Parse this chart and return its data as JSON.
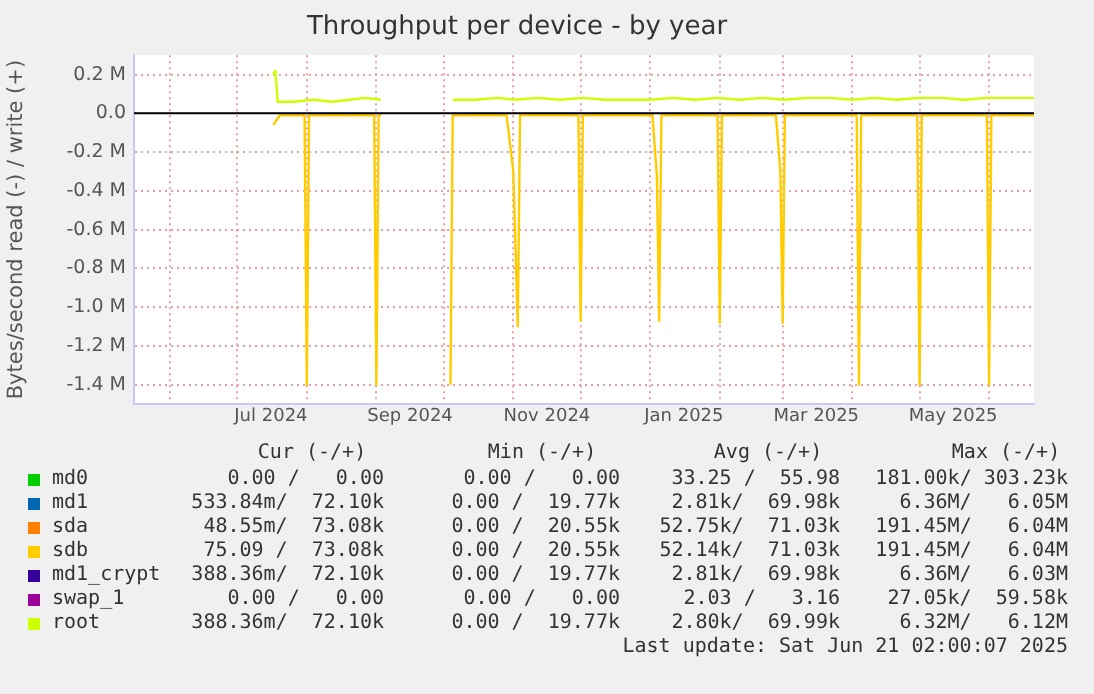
{
  "chart_data": {
    "type": "line",
    "title": "Throughput per device - by year",
    "ylabel": "Bytes/second read (-) / write (+)",
    "xlim": [
      "2024-05-16",
      "2025-06-21"
    ],
    "xticks": [
      {
        "value": "2024-06-01",
        "label": null
      },
      {
        "value": "2024-07-01",
        "label": null
      },
      {
        "value": "2024-07-16",
        "label": "Jul 2024"
      },
      {
        "value": "2024-08-01",
        "label": null
      },
      {
        "value": "2024-09-01",
        "label": null
      },
      {
        "value": "2024-09-16",
        "label": "Sep 2024"
      },
      {
        "value": "2024-10-01",
        "label": null
      },
      {
        "value": "2024-11-01",
        "label": null
      },
      {
        "value": "2024-11-16",
        "label": "Nov 2024"
      },
      {
        "value": "2024-12-01",
        "label": null
      },
      {
        "value": "2025-01-01",
        "label": null
      },
      {
        "value": "2025-01-16",
        "label": "Jan 2025"
      },
      {
        "value": "2025-02-01",
        "label": null
      },
      {
        "value": "2025-03-01",
        "label": null
      },
      {
        "value": "2025-03-16",
        "label": "Mar 2025"
      },
      {
        "value": "2025-04-01",
        "label": null
      },
      {
        "value": "2025-05-01",
        "label": null
      },
      {
        "value": "2025-05-16",
        "label": "May 2025"
      },
      {
        "value": "2025-06-01",
        "label": null
      }
    ],
    "ylim": [
      -1.5,
      0.3
    ],
    "yticks": [
      {
        "value": -1.4,
        "label": "-1.4 M"
      },
      {
        "value": -1.2,
        "label": "-1.2 M"
      },
      {
        "value": -1.0,
        "label": "-1.0 M"
      },
      {
        "value": -0.8,
        "label": "-0.8 M"
      },
      {
        "value": -0.6,
        "label": "-0.6 M"
      },
      {
        "value": -0.4,
        "label": "-0.4 M"
      },
      {
        "value": -0.2,
        "label": "-0.2 M"
      },
      {
        "value": 0,
        "label": "0.0"
      },
      {
        "value": 0.2,
        "label": "0.2 M"
      }
    ],
    "grid": true,
    "legend": "bottom",
    "marker": "none",
    "ref_lines": [
      {
        "axis": "y",
        "value": 0,
        "color": "#000000"
      }
    ],
    "series": [
      {
        "name": "md0",
        "color": "#00cc00"
      },
      {
        "name": "md1",
        "color": "#0066b3"
      },
      {
        "name": "sda",
        "color": "#ff8000"
      },
      {
        "name": "sdb",
        "color": "#ffcc00",
        "x": [
          "2024-07-17",
          "2024-07-20",
          "2024-07-31",
          "2024-08-01",
          "2024-08-02",
          "2024-08-31",
          "2024-09-01",
          "2024-09-02",
          "2024-09-03",
          "2024-09-04",
          "2024-10-03",
          "2024-10-04",
          "2024-10-05",
          "2024-10-29",
          "2024-11-01",
          "2024-11-03",
          "2024-11-04",
          "2024-11-30",
          "2024-12-01",
          "2024-12-02",
          "2025-01-02",
          "2025-01-04",
          "2025-01-05",
          "2025-01-06",
          "2025-01-31",
          "2025-02-01",
          "2025-02-02",
          "2025-02-26",
          "2025-02-28",
          "2025-03-01",
          "2025-03-02",
          "2025-04-03",
          "2025-04-04",
          "2025-04-05",
          "2025-04-30",
          "2025-05-01",
          "2025-05-02",
          "2025-05-31",
          "2025-06-01",
          "2025-06-02",
          "2025-06-21"
        ],
        "values": [
          -0.06,
          -0.01,
          -0.01,
          -1.4,
          -0.01,
          -0.01,
          -1.4,
          -0.01,
          -0.01,
          null,
          null,
          -1.4,
          -0.01,
          -0.01,
          -0.3,
          -1.1,
          -0.01,
          -0.01,
          -1.07,
          -0.01,
          -0.01,
          -0.33,
          -1.07,
          -0.01,
          -0.01,
          -1.08,
          -0.01,
          -0.01,
          -0.3,
          -1.08,
          -0.01,
          -0.01,
          -1.4,
          -0.01,
          -0.01,
          -1.4,
          -0.01,
          -0.01,
          -1.4,
          -0.01,
          -0.01
        ]
      },
      {
        "name": "md1_crypt",
        "color": "#330099"
      },
      {
        "name": "swap_1",
        "color": "#990099"
      },
      {
        "name": "root",
        "color": "#ccff00",
        "x": [
          "2024-07-17",
          "2024-07-18",
          "2024-07-19",
          "2024-07-26",
          "2024-08-04",
          "2024-08-12",
          "2024-08-20",
          "2024-08-27",
          "2024-09-03",
          "2024-09-04",
          "2024-10-04",
          "2024-10-05",
          "2024-10-15",
          "2024-10-25",
          "2024-11-02",
          "2024-11-12",
          "2024-11-22",
          "2024-12-02",
          "2024-12-12",
          "2024-12-22",
          "2025-01-01",
          "2025-01-11",
          "2025-01-21",
          "2025-01-31",
          "2025-02-10",
          "2025-02-20",
          "2025-03-02",
          "2025-03-12",
          "2025-03-22",
          "2025-04-01",
          "2025-04-11",
          "2025-04-21",
          "2025-05-01",
          "2025-05-11",
          "2025-05-21",
          "2025-05-31",
          "2025-06-10",
          "2025-06-21"
        ],
        "values": [
          0.2,
          0.22,
          0.06,
          0.06,
          0.07,
          0.06,
          0.07,
          0.08,
          0.07,
          null,
          null,
          0.07,
          0.07,
          0.08,
          0.07,
          0.08,
          0.07,
          0.08,
          0.07,
          0.07,
          0.07,
          0.08,
          0.07,
          0.08,
          0.07,
          0.08,
          0.07,
          0.08,
          0.08,
          0.07,
          0.08,
          0.07,
          0.08,
          0.08,
          0.07,
          0.08,
          0.08,
          0.08
        ]
      }
    ],
    "annotations": [
      "Cur (-/+)",
      "Min (-/+)",
      "Avg (-/+)",
      "Max (-/+)",
      "0.00 /   0.00",
      "0.00 /   0.00",
      "33.25 /  55.98",
      "181.00k/ 303.23k",
      "533.84m/  72.10k",
      "0.00 /  19.77k",
      "2.81k/  69.98k",
      "6.36M/   6.05M",
      "48.55m/  73.08k",
      "0.00 /  20.55k",
      "52.75k/  71.03k",
      "191.45M/   6.04M",
      "75.09 /  73.08k",
      "0.00 /  20.55k",
      "52.14k/  71.03k",
      "191.45M/   6.04M",
      "388.36m/  72.10k",
      "0.00 /  19.77k",
      "2.81k/  69.98k",
      "6.36M/   6.03M",
      "0.00 /   0.00",
      "0.00 /   0.00",
      "2.03 /   3.16",
      "27.05k/  59.58k",
      "388.36m/  72.10k",
      "0.00 /  19.77k",
      "2.80k/  69.99k",
      "6.32M/   6.12M",
      "Last update: Sat Jun 21 02:00:07 2025"
    ]
  }
}
